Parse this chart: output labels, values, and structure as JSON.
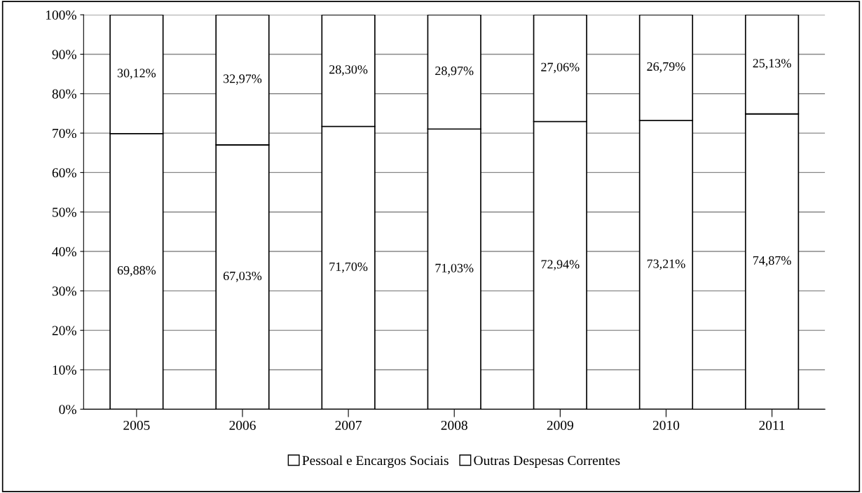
{
  "chart_data": {
    "type": "bar",
    "stacked": true,
    "categories": [
      "2005",
      "2006",
      "2007",
      "2008",
      "2009",
      "2010",
      "2011"
    ],
    "series": [
      {
        "name": "Pessoal e Encargos Sociais",
        "color": "#ffffff",
        "values": [
          69.88,
          67.03,
          71.7,
          71.03,
          72.94,
          73.21,
          74.87
        ],
        "value_labels": [
          "69,88%",
          "67,03%",
          "71,70%",
          "71,03%",
          "72,94%",
          "73,21%",
          "74,87%"
        ]
      },
      {
        "name": "Outras Despesas Correntes",
        "color": "#ffffff",
        "values": [
          30.12,
          32.97,
          28.3,
          28.97,
          27.06,
          26.79,
          25.13
        ],
        "value_labels": [
          "30,12%",
          "32,97%",
          "28,30%",
          "28,97%",
          "27,06%",
          "26,79%",
          "25,13%"
        ]
      }
    ],
    "ylim": [
      0,
      100
    ],
    "yticks": [
      {
        "value": 0,
        "label": "0%"
      },
      {
        "value": 10,
        "label": "10%"
      },
      {
        "value": 20,
        "label": "20%"
      },
      {
        "value": 30,
        "label": "30%"
      },
      {
        "value": 40,
        "label": "40%"
      },
      {
        "value": 50,
        "label": "50%"
      },
      {
        "value": 60,
        "label": "60%"
      },
      {
        "value": 70,
        "label": "70%"
      },
      {
        "value": 80,
        "label": "80%"
      },
      {
        "value": 90,
        "label": "90%"
      },
      {
        "value": 100,
        "label": "100%"
      }
    ],
    "grid": "y",
    "legend": "bottom"
  }
}
